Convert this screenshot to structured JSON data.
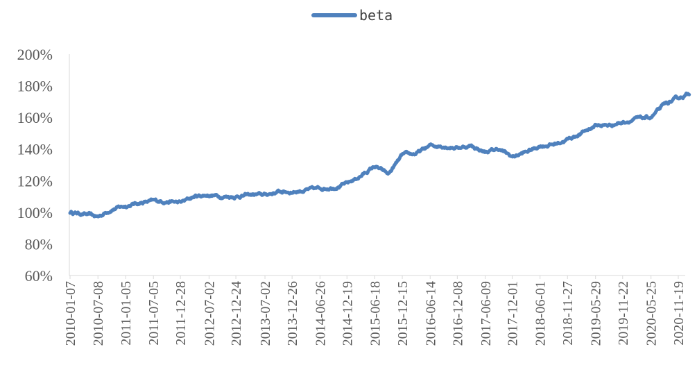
{
  "chart_data": {
    "type": "line",
    "ylim": [
      0.6,
      2.0
    ],
    "y_ticks": [
      "60%",
      "80%",
      "100%",
      "120%",
      "140%",
      "160%",
      "180%",
      "200%"
    ],
    "x_ticks": [
      "2010-01-07",
      "2010-07-08",
      "2011-01-05",
      "2011-07-05",
      "2011-12-28",
      "2012-07-02",
      "2012-12-24",
      "2013-07-02",
      "2013-12-26",
      "2014-06-26",
      "2014-12-19",
      "2015-06-18",
      "2015-12-15",
      "2016-06-14",
      "2016-12-08",
      "2017-06-09",
      "2017-12-01",
      "2018-06-01",
      "2018-11-27",
      "2019-05-29",
      "2019-11-22",
      "2020-05-25",
      "2020-11-19"
    ],
    "grid": false,
    "legend_position": "top-center",
    "line_color": "#4f81bd",
    "series": [
      {
        "name": "beta",
        "x": [
          "2010-01-07",
          "2010-04-08",
          "2010-07-08",
          "2010-10-06",
          "2011-01-05",
          "2011-04-05",
          "2011-07-05",
          "2011-09-30",
          "2011-12-28",
          "2012-03-30",
          "2012-07-02",
          "2012-09-27",
          "2012-12-24",
          "2013-03-28",
          "2013-07-02",
          "2013-09-29",
          "2013-12-26",
          "2014-03-27",
          "2014-06-26",
          "2014-09-22",
          "2014-12-19",
          "2015-03-20",
          "2015-06-18",
          "2015-09-16",
          "2015-12-15",
          "2016-03-15",
          "2016-06-14",
          "2016-09-10",
          "2016-12-08",
          "2017-03-10",
          "2017-06-09",
          "2017-09-05",
          "2017-12-01",
          "2018-03-02",
          "2018-06-01",
          "2018-08-30",
          "2018-11-27",
          "2019-02-26",
          "2019-05-29",
          "2019-08-25",
          "2019-11-22",
          "2020-02-22",
          "2020-05-25",
          "2020-08-22",
          "2020-11-19",
          "2021-01-29"
        ],
        "y": [
          1.0,
          0.99,
          0.97,
          1.02,
          1.04,
          1.06,
          1.07,
          1.07,
          1.06,
          1.1,
          1.11,
          1.1,
          1.1,
          1.11,
          1.11,
          1.13,
          1.13,
          1.14,
          1.15,
          1.16,
          1.18,
          1.23,
          1.29,
          1.24,
          1.36,
          1.37,
          1.42,
          1.42,
          1.41,
          1.42,
          1.38,
          1.4,
          1.35,
          1.38,
          1.42,
          1.43,
          1.46,
          1.5,
          1.55,
          1.55,
          1.57,
          1.59,
          1.6,
          1.68,
          1.72,
          1.75
        ]
      }
    ]
  }
}
